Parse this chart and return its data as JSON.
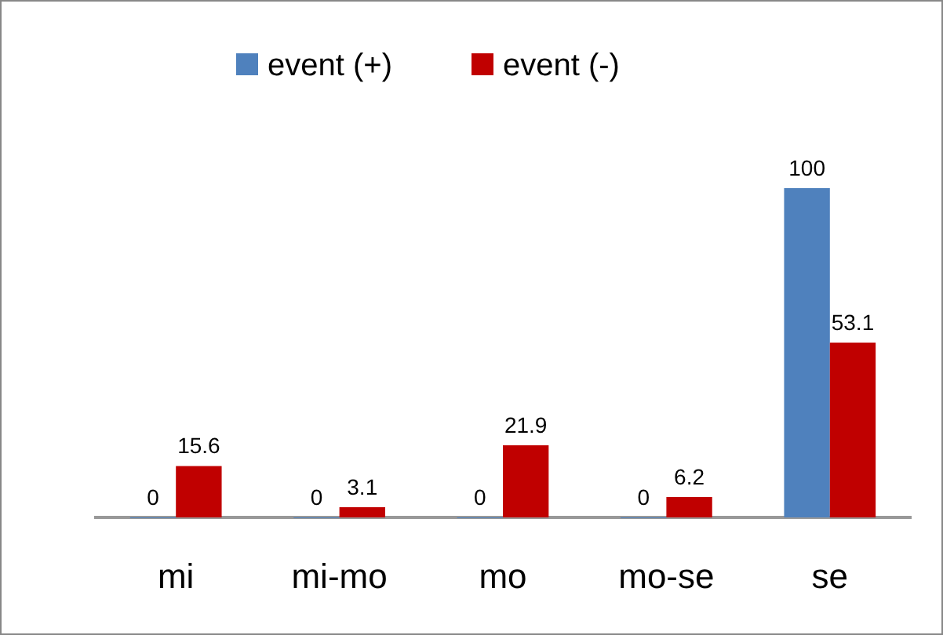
{
  "chart_data": {
    "type": "bar",
    "categories": [
      "mi",
      "mi-mo",
      "mo",
      "mo-se",
      "se"
    ],
    "series": [
      {
        "name": "event (+)",
        "color": "#4f81bd",
        "values": [
          0,
          0,
          0,
          0,
          100
        ]
      },
      {
        "name": "event (-)",
        "color": "#c00000",
        "values": [
          15.6,
          3.1,
          21.9,
          6.2,
          53.1
        ]
      }
    ],
    "data_labels": true,
    "legend": "top"
  }
}
